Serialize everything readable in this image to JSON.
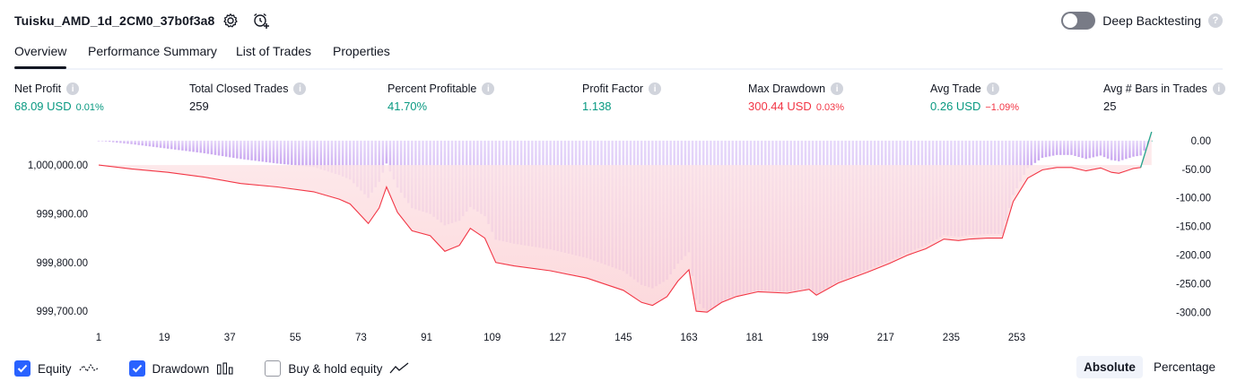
{
  "header": {
    "title": "Tuisku_AMD_1d_2CM0_37b0f3a8",
    "deep_backtesting_label": "Deep Backtesting",
    "deep_backtesting_on": false,
    "help_glyph": "?"
  },
  "tabs": [
    {
      "label": "Overview",
      "active": true
    },
    {
      "label": "Performance Summary",
      "active": false
    },
    {
      "label": "List of Trades",
      "active": false
    },
    {
      "label": "Properties",
      "active": false
    }
  ],
  "metrics": [
    {
      "label": "Net Profit",
      "value": "68.09 USD",
      "pct": "0.01%",
      "color": "green"
    },
    {
      "label": "Total Closed Trades",
      "value": "259",
      "pct": "",
      "color": "dark"
    },
    {
      "label": "Percent Profitable",
      "value": "41.70%",
      "pct": "",
      "color": "green"
    },
    {
      "label": "Profit Factor",
      "value": "1.138",
      "pct": "",
      "color": "green"
    },
    {
      "label": "Max Drawdown",
      "value": "300.44 USD",
      "pct": "0.03%",
      "color": "red"
    },
    {
      "label": "Avg Trade",
      "value": "0.26 USD",
      "pct": "−1.09%",
      "color": "mixed"
    },
    {
      "label": "Avg # Bars in Trades",
      "value": "25",
      "pct": "",
      "color": "dark"
    }
  ],
  "info_glyph": "i",
  "chart_data": {
    "type": "area",
    "x_ticks": [
      "1",
      "19",
      "37",
      "55",
      "73",
      "91",
      "109",
      "127",
      "145",
      "163",
      "181",
      "199",
      "217",
      "235",
      "253"
    ],
    "left_axis_labels": [
      "1,000,000.00",
      "999,900.00",
      "999,800.00",
      "999,700.00"
    ],
    "left_axis_values": [
      1000000,
      999900,
      999800,
      999700
    ],
    "right_axis_labels": [
      "0.00",
      "-50.00",
      "-100.00",
      "-150.00",
      "-200.00",
      "-250.00",
      "-300.00"
    ],
    "right_axis_values": [
      0,
      -50,
      -100,
      -150,
      -200,
      -250,
      -300
    ],
    "x_range": [
      1,
      260
    ],
    "left_ylim": [
      999680,
      1000070
    ],
    "right_ylim": [
      -315,
      17
    ],
    "equity": {
      "name": "Equity",
      "points": [
        [
          1,
          1000000
        ],
        [
          10,
          999992
        ],
        [
          20,
          999985
        ],
        [
          30,
          999975
        ],
        [
          40,
          999962
        ],
        [
          50,
          999955
        ],
        [
          60,
          999945
        ],
        [
          67,
          999930
        ],
        [
          70,
          999920
        ],
        [
          75,
          999880
        ],
        [
          78,
          999912
        ],
        [
          80,
          999955
        ],
        [
          83,
          999903
        ],
        [
          87,
          999865
        ],
        [
          92,
          999855
        ],
        [
          96,
          999823
        ],
        [
          100,
          999835
        ],
        [
          103,
          999870
        ],
        [
          107,
          999850
        ],
        [
          110,
          999800
        ],
        [
          115,
          999793
        ],
        [
          125,
          999783
        ],
        [
          135,
          999768
        ],
        [
          145,
          999743
        ],
        [
          150,
          999718
        ],
        [
          153,
          999712
        ],
        [
          157,
          999730
        ],
        [
          160,
          999762
        ],
        [
          163,
          999785
        ],
        [
          165,
          999700
        ],
        [
          168,
          999698
        ],
        [
          172,
          999718
        ],
        [
          176,
          999730
        ],
        [
          182,
          999740
        ],
        [
          190,
          999737
        ],
        [
          196,
          999745
        ],
        [
          198,
          999733
        ],
        [
          204,
          999758
        ],
        [
          212,
          999780
        ],
        [
          218,
          999798
        ],
        [
          223,
          999815
        ],
        [
          228,
          999828
        ],
        [
          233,
          999848
        ],
        [
          237,
          999845
        ],
        [
          240,
          999848
        ],
        [
          245,
          999850
        ],
        [
          249,
          999850
        ],
        [
          252,
          999925
        ],
        [
          256,
          999973
        ],
        [
          260,
          999990
        ],
        [
          264,
          999995
        ],
        [
          268,
          999995
        ],
        [
          272,
          999988
        ],
        [
          276,
          999994
        ],
        [
          279,
          999985
        ],
        [
          281,
          999983
        ],
        [
          283,
          999988
        ],
        [
          285,
          999993
        ],
        [
          287,
          999995
        ],
        [
          290,
          1000068
        ]
      ]
    },
    "drawdown": {
      "name": "Drawdown",
      "points": [
        [
          1,
          0
        ],
        [
          10,
          -6
        ],
        [
          20,
          -14
        ],
        [
          30,
          -22
        ],
        [
          40,
          -32
        ],
        [
          50,
          -40
        ],
        [
          60,
          -46
        ],
        [
          67,
          -60
        ],
        [
          70,
          -68
        ],
        [
          75,
          -100
        ],
        [
          78,
          -72
        ],
        [
          80,
          -40
        ],
        [
          83,
          -82
        ],
        [
          87,
          -118
        ],
        [
          92,
          -128
        ],
        [
          96,
          -148
        ],
        [
          100,
          -140
        ],
        [
          103,
          -116
        ],
        [
          107,
          -132
        ],
        [
          110,
          -173
        ],
        [
          115,
          -180
        ],
        [
          125,
          -190
        ],
        [
          135,
          -205
        ],
        [
          145,
          -228
        ],
        [
          150,
          -252
        ],
        [
          153,
          -258
        ],
        [
          157,
          -243
        ],
        [
          160,
          -215
        ],
        [
          163,
          -195
        ],
        [
          165,
          -278
        ],
        [
          168,
          -300
        ],
        [
          172,
          -282
        ],
        [
          176,
          -270
        ],
        [
          182,
          -262
        ],
        [
          190,
          -264
        ],
        [
          196,
          -258
        ],
        [
          198,
          -268
        ],
        [
          204,
          -246
        ],
        [
          212,
          -226
        ],
        [
          218,
          -210
        ],
        [
          223,
          -196
        ],
        [
          228,
          -183
        ],
        [
          233,
          -165
        ],
        [
          237,
          -168
        ],
        [
          240,
          -165
        ],
        [
          245,
          -163
        ],
        [
          249,
          -163
        ],
        [
          252,
          -95
        ],
        [
          256,
          -48
        ],
        [
          260,
          -30
        ],
        [
          264,
          -25
        ],
        [
          268,
          -25
        ],
        [
          272,
          -32
        ],
        [
          276,
          -26
        ],
        [
          279,
          -34
        ],
        [
          281,
          -36
        ],
        [
          283,
          -32
        ],
        [
          285,
          -28
        ],
        [
          287,
          -26
        ],
        [
          290,
          0
        ]
      ]
    },
    "colors": {
      "equity_line": "#f23645",
      "equity_fill": "#fcd2d6",
      "drawdown_bars": "#c9a6f0",
      "final_bar": "#22ab94",
      "grid": "#f0f3fa"
    }
  },
  "legend": [
    {
      "label": "Equity",
      "checked": true,
      "icon": "equity-wave-icon"
    },
    {
      "label": "Drawdown",
      "checked": true,
      "icon": "drawdown-bars-icon"
    },
    {
      "label": "Buy & hold equity",
      "checked": false,
      "icon": "buy-hold-line-icon"
    }
  ],
  "modes": [
    {
      "label": "Absolute",
      "active": true
    },
    {
      "label": "Percentage",
      "active": false
    }
  ]
}
